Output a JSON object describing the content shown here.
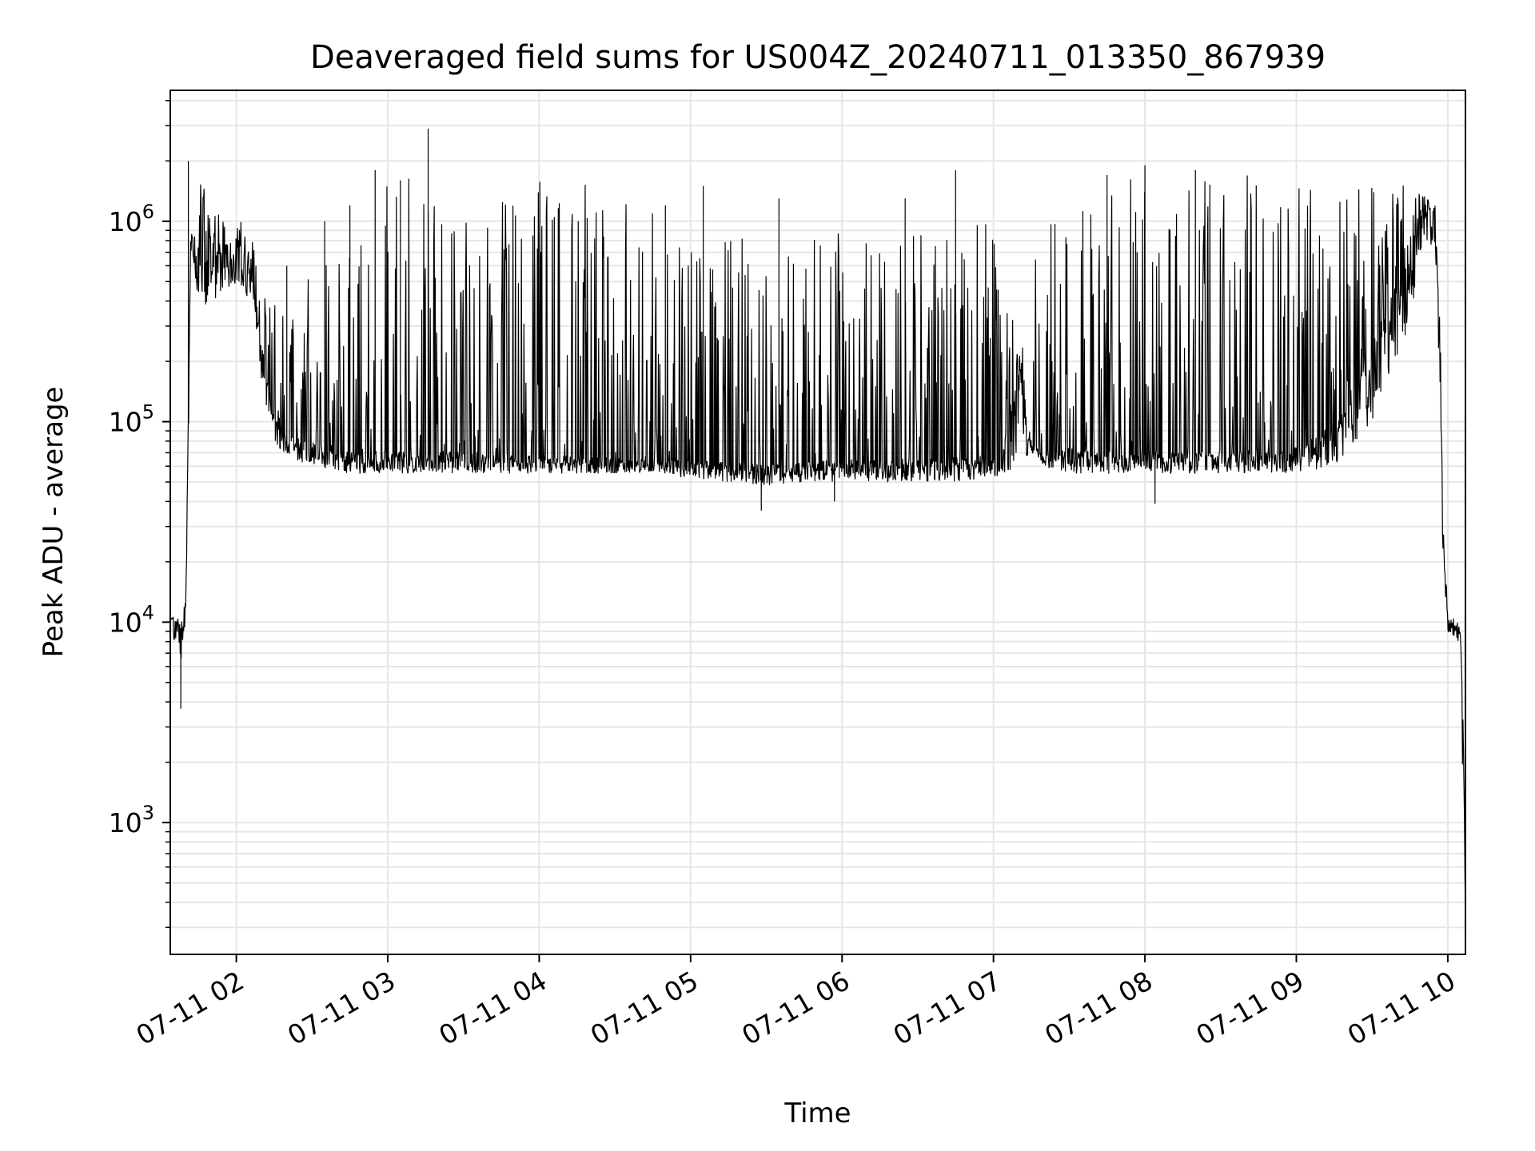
{
  "chart_data": {
    "type": "line",
    "title": "Deaveraged field sums for US004Z_20240711_013350_867939",
    "xlabel": "Time",
    "ylabel": "Peak ADU - average",
    "x_tick_labels": [
      "07-11 02",
      "07-11 03",
      "07-11 04",
      "07-11 05",
      "07-11 06",
      "07-11 07",
      "07-11 08",
      "07-11 09",
      "07-11 10"
    ],
    "y_scale": "log",
    "y_tick_labels": [
      {
        "base": "10",
        "exp": "3"
      },
      {
        "base": "10",
        "exp": "4"
      },
      {
        "base": "10",
        "exp": "5"
      },
      {
        "base": "10",
        "exp": "6"
      }
    ],
    "xlim": [
      "2024-07-11 01:33:50",
      "2024-07-11 10:07"
    ],
    "ylim": [
      220,
      4500000
    ],
    "grid": true,
    "line_color": "#000000",
    "grid_color": "#e6e6e6",
    "envelope": {
      "time": [
        "01:34",
        "01:36",
        "01:39",
        "01:40",
        "01:42",
        "01:45",
        "01:50",
        "01:55",
        "02:00",
        "02:05",
        "02:10",
        "02:15",
        "02:20",
        "02:30",
        "02:45",
        "03:00",
        "03:15",
        "03:30",
        "03:45",
        "04:00",
        "04:15",
        "04:30",
        "04:45",
        "05:00",
        "05:15",
        "05:30",
        "05:45",
        "06:00",
        "06:15",
        "06:30",
        "06:45",
        "07:00",
        "07:05",
        "07:10",
        "07:15",
        "07:20",
        "07:30",
        "07:45",
        "08:00",
        "08:15",
        "08:30",
        "08:45",
        "09:00",
        "09:15",
        "09:30",
        "09:45",
        "09:50",
        "09:55",
        "09:57",
        "09:58",
        "10:00",
        "10:02",
        "10:04",
        "10:05",
        "10:06",
        "10:07"
      ],
      "low": [
        8500,
        7000,
        6000,
        8000,
        700000,
        350000,
        400000,
        400000,
        500000,
        400000,
        150000,
        80000,
        65000,
        60000,
        55000,
        55000,
        55000,
        55000,
        55000,
        55000,
        55000,
        55000,
        55000,
        52000,
        50000,
        48000,
        50000,
        50000,
        50000,
        50000,
        50000,
        52000,
        55000,
        60000,
        70000,
        60000,
        55000,
        55000,
        55000,
        55000,
        55000,
        55000,
        55000,
        60000,
        100000,
        300000,
        800000,
        700000,
        100000,
        20000,
        9000,
        8500,
        8000,
        5000,
        1500,
        300
      ],
      "base": [
        10000,
        10000,
        9000,
        12000,
        900000,
        700000,
        650000,
        700000,
        750000,
        650000,
        250000,
        100000,
        80000,
        75000,
        70000,
        68000,
        68000,
        68000,
        66000,
        65000,
        65000,
        64000,
        63000,
        62000,
        60000,
        58000,
        60000,
        62000,
        62000,
        62000,
        64000,
        65000,
        70000,
        200000,
        75000,
        70000,
        70000,
        68000,
        68000,
        68000,
        68000,
        68000,
        70000,
        90000,
        200000,
        700000,
        1200000,
        1100000,
        200000,
        30000,
        10000,
        9500,
        9000,
        8000,
        3000,
        400
      ],
      "high": [
        12000,
        11500,
        11000,
        15000,
        1900000,
        1700000,
        1200000,
        1000000,
        1050000,
        1000000,
        600000,
        500000,
        300000,
        600000,
        1000000,
        1600000,
        1800000,
        1800000,
        1700000,
        1700000,
        1600000,
        1400000,
        1200000,
        1100000,
        900000,
        700000,
        800000,
        900000,
        900000,
        900000,
        1000000,
        1200000,
        400000,
        300000,
        700000,
        1000000,
        1400000,
        1700000,
        1800000,
        1800000,
        1700000,
        1700000,
        1700000,
        1700000,
        1600000,
        1500000,
        1400000,
        1200000,
        300000,
        40000,
        11000,
        10500,
        10000,
        9500,
        4000,
        500
      ]
    },
    "spikes": [
      {
        "time": "01:41",
        "value": 2000000
      },
      {
        "time": "02:20",
        "value": 600000
      },
      {
        "time": "02:35",
        "value": 1000000
      },
      {
        "time": "02:45",
        "value": 1200000
      },
      {
        "time": "02:55",
        "value": 1800000
      },
      {
        "time": "03:05",
        "value": 1600000
      },
      {
        "time": "03:16",
        "value": 2900000
      },
      {
        "time": "04:50",
        "value": 1200000
      },
      {
        "time": "05:05",
        "value": 1500000
      },
      {
        "time": "05:35",
        "value": 1300000
      },
      {
        "time": "06:25",
        "value": 1300000
      },
      {
        "time": "06:45",
        "value": 1800000
      },
      {
        "time": "07:45",
        "value": 1700000
      },
      {
        "time": "08:00",
        "value": 1900000
      },
      {
        "time": "08:20",
        "value": 1800000
      }
    ],
    "dips": [
      {
        "time": "05:28",
        "value": 36000
      },
      {
        "time": "05:57",
        "value": 40000
      },
      {
        "time": "08:04",
        "value": 39000
      },
      {
        "time": "01:38",
        "value": 3700
      }
    ]
  }
}
